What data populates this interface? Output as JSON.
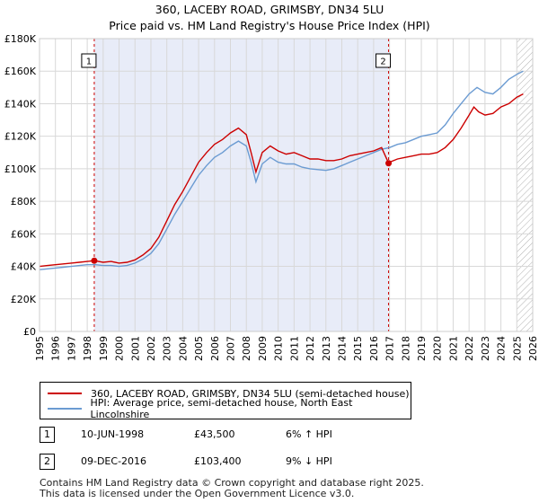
{
  "title_line1": "360, LACEBY ROAD, GRIMSBY, DN34 5LU",
  "title_line2": "Price paid vs. HM Land Registry's House Price Index (HPI)",
  "colors": {
    "property": "#cc0000",
    "hpi": "#6b9bd2",
    "shade": "#e8ecf8",
    "grid": "#d8d8d8"
  },
  "legend": {
    "property": "360, LACEBY ROAD, GRIMSBY, DN34 5LU (semi-detached house)",
    "hpi": "HPI: Average price, semi-detached house, North East Lincolnshire"
  },
  "sales": [
    {
      "num": "1",
      "date": "10-JUN-1998",
      "price": "£43,500",
      "hpi_change": "6% ↑ HPI"
    },
    {
      "num": "2",
      "date": "09-DEC-2016",
      "price": "£103,400",
      "hpi_change": "9% ↓ HPI"
    }
  ],
  "footer_line1": "Contains HM Land Registry data © Crown copyright and database right 2025.",
  "footer_line2": "This data is licensed under the Open Government Licence v3.0.",
  "chart_data": {
    "type": "line",
    "title": "Price paid vs. HM Land Registry's House Price Index (HPI)",
    "xlim": [
      1995,
      2026
    ],
    "ylim": [
      0,
      180000
    ],
    "x_ticks": [
      1995,
      1996,
      1997,
      1998,
      1999,
      2000,
      2001,
      2002,
      2003,
      2004,
      2005,
      2006,
      2007,
      2008,
      2009,
      2010,
      2011,
      2012,
      2013,
      2014,
      2015,
      2016,
      2017,
      2018,
      2019,
      2020,
      2021,
      2022,
      2023,
      2024,
      2025,
      2026
    ],
    "y_ticks": [
      {
        "value": 0,
        "label": "£0"
      },
      {
        "value": 20000,
        "label": "£20K"
      },
      {
        "value": 40000,
        "label": "£40K"
      },
      {
        "value": 60000,
        "label": "£60K"
      },
      {
        "value": 80000,
        "label": "£80K"
      },
      {
        "value": 100000,
        "label": "£100K"
      },
      {
        "value": 120000,
        "label": "£120K"
      },
      {
        "value": 140000,
        "label": "£140K"
      },
      {
        "value": 160000,
        "label": "£160K"
      },
      {
        "value": 180000,
        "label": "£180K"
      }
    ],
    "shaded_range": [
      1998.44,
      2016.94
    ],
    "hatched_from": 2025.0,
    "markers": [
      {
        "label": "1",
        "x": 1998.44,
        "y": 43500
      },
      {
        "label": "2",
        "x": 2016.94,
        "y": 103400
      }
    ],
    "series": [
      {
        "name": "360, LACEBY ROAD, GRIMSBY, DN34 5LU (semi-detached house)",
        "x": [
          1995,
          1995.5,
          1996,
          1996.5,
          1997,
          1997.5,
          1998,
          1998.44,
          1999,
          1999.5,
          2000,
          2000.5,
          2001,
          2001.5,
          2002,
          2002.5,
          2003,
          2003.5,
          2004,
          2004.5,
          2005,
          2005.5,
          2006,
          2006.5,
          2007,
          2007.5,
          2008,
          2008.3,
          2008.6,
          2009,
          2009.5,
          2010,
          2010.5,
          2011,
          2011.5,
          2012,
          2012.5,
          2013,
          2013.5,
          2014,
          2014.5,
          2015,
          2015.5,
          2016,
          2016.5,
          2016.94,
          2017,
          2017.5,
          2018,
          2018.5,
          2019,
          2019.5,
          2020,
          2020.5,
          2021,
          2021.5,
          2022,
          2022.3,
          2022.6,
          2023,
          2023.5,
          2024,
          2024.5,
          2025,
          2025.4
        ],
        "values": [
          40000,
          40500,
          41000,
          41500,
          42000,
          42500,
          43000,
          43500,
          42500,
          43000,
          42000,
          42500,
          44000,
          47000,
          51000,
          58000,
          68000,
          78000,
          86000,
          95000,
          104000,
          110000,
          115000,
          118000,
          122000,
          125000,
          121000,
          110000,
          98000,
          110000,
          114000,
          111000,
          109000,
          110000,
          108000,
          106000,
          106000,
          105000,
          105000,
          106000,
          108000,
          109000,
          110000,
          111000,
          113000,
          103400,
          104000,
          106000,
          107000,
          108000,
          109000,
          109000,
          110000,
          113000,
          118000,
          125000,
          133000,
          138000,
          135000,
          133000,
          134000,
          138000,
          140000,
          144000,
          146000
        ]
      },
      {
        "name": "HPI: Average price, semi-detached house, North East Lincolnshire",
        "x": [
          1995,
          1995.5,
          1996,
          1996.5,
          1997,
          1997.5,
          1998,
          1998.5,
          1999,
          1999.5,
          2000,
          2000.5,
          2001,
          2001.5,
          2002,
          2002.5,
          2003,
          2003.5,
          2004,
          2004.5,
          2005,
          2005.5,
          2006,
          2006.5,
          2007,
          2007.5,
          2008,
          2008.3,
          2008.6,
          2009,
          2009.5,
          2010,
          2010.5,
          2011,
          2011.5,
          2012,
          2012.5,
          2013,
          2013.5,
          2014,
          2014.5,
          2015,
          2015.5,
          2016,
          2016.5,
          2017,
          2017.5,
          2018,
          2018.5,
          2019,
          2019.5,
          2020,
          2020.5,
          2021,
          2021.5,
          2022,
          2022.5,
          2023,
          2023.5,
          2024,
          2024.5,
          2025,
          2025.4
        ],
        "values": [
          38000,
          38500,
          39000,
          39500,
          40000,
          40500,
          41000,
          41000,
          40500,
          40500,
          40000,
          40500,
          42000,
          44500,
          48000,
          54000,
          63000,
          72000,
          80000,
          88000,
          96000,
          102000,
          107000,
          110000,
          114000,
          117000,
          114000,
          104000,
          92000,
          103000,
          107000,
          104000,
          103000,
          103000,
          101000,
          100000,
          99500,
          99000,
          100000,
          102000,
          104000,
          106000,
          108000,
          110000,
          112000,
          113000,
          115000,
          116000,
          118000,
          120000,
          121000,
          122000,
          127000,
          134000,
          140000,
          146000,
          150000,
          147000,
          146000,
          150000,
          155000,
          158000,
          160000
        ]
      }
    ]
  }
}
